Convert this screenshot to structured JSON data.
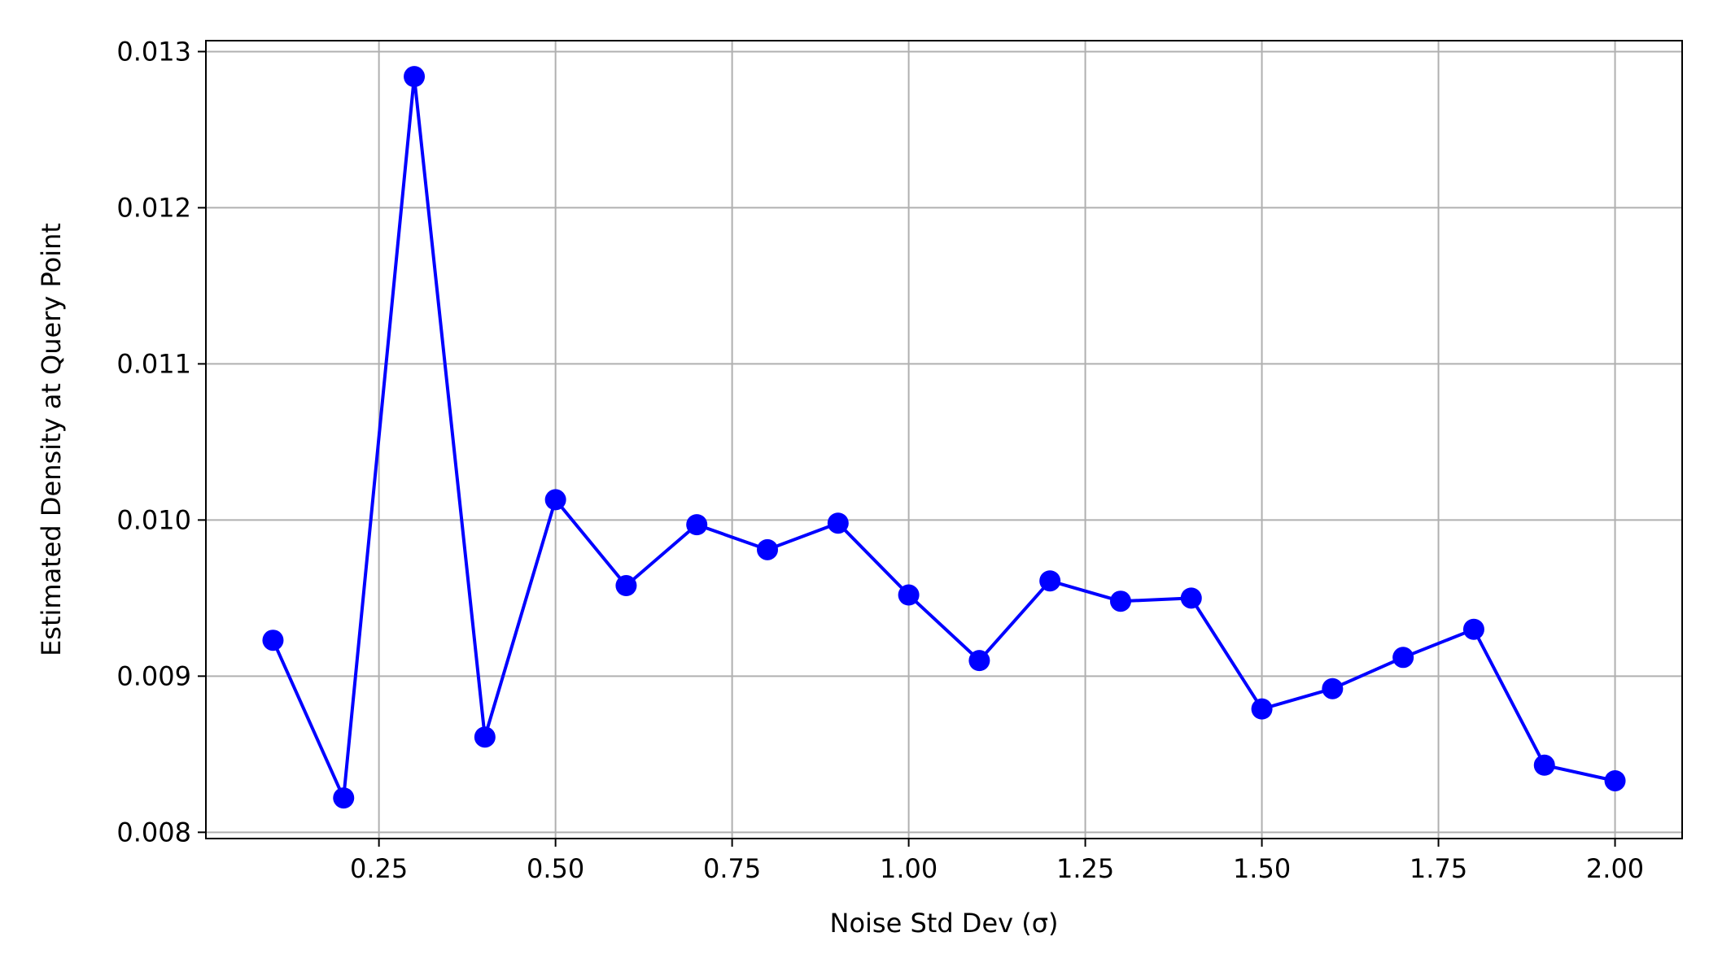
{
  "chart_data": {
    "type": "line",
    "title": "",
    "xlabel": "Noise Std Dev (σ)",
    "ylabel": "Estimated Density at Query Point",
    "xlim": [
      0.005,
      2.095
    ],
    "ylim": [
      0.00796,
      0.01307
    ],
    "grid": true,
    "marker": "circle",
    "color": "#0000ff",
    "grid_color": "#b0b0b0",
    "x_ticks": [
      0.25,
      0.5,
      0.75,
      1.0,
      1.25,
      1.5,
      1.75,
      2.0
    ],
    "x_tick_labels": [
      "0.25",
      "0.50",
      "0.75",
      "1.00",
      "1.25",
      "1.50",
      "1.75",
      "2.00"
    ],
    "y_ticks": [
      0.008,
      0.009,
      0.01,
      0.011,
      0.012,
      0.013
    ],
    "y_tick_labels": [
      "0.008",
      "0.009",
      "0.010",
      "0.011",
      "0.012",
      "0.013"
    ],
    "series": [
      {
        "x": [
          0.1,
          0.2,
          0.3,
          0.4,
          0.5,
          0.6,
          0.7,
          0.8,
          0.9,
          1.0,
          1.1,
          1.2,
          1.3,
          1.4,
          1.5,
          1.6,
          1.7,
          1.8,
          1.9,
          2.0
        ],
        "y": [
          0.00923,
          0.00822,
          0.01284,
          0.00861,
          0.01013,
          0.00958,
          0.00997,
          0.00981,
          0.00998,
          0.00952,
          0.0091,
          0.00961,
          0.00948,
          0.0095,
          0.00879,
          0.00892,
          0.00912,
          0.0093,
          0.00843,
          0.00833
        ]
      }
    ]
  }
}
